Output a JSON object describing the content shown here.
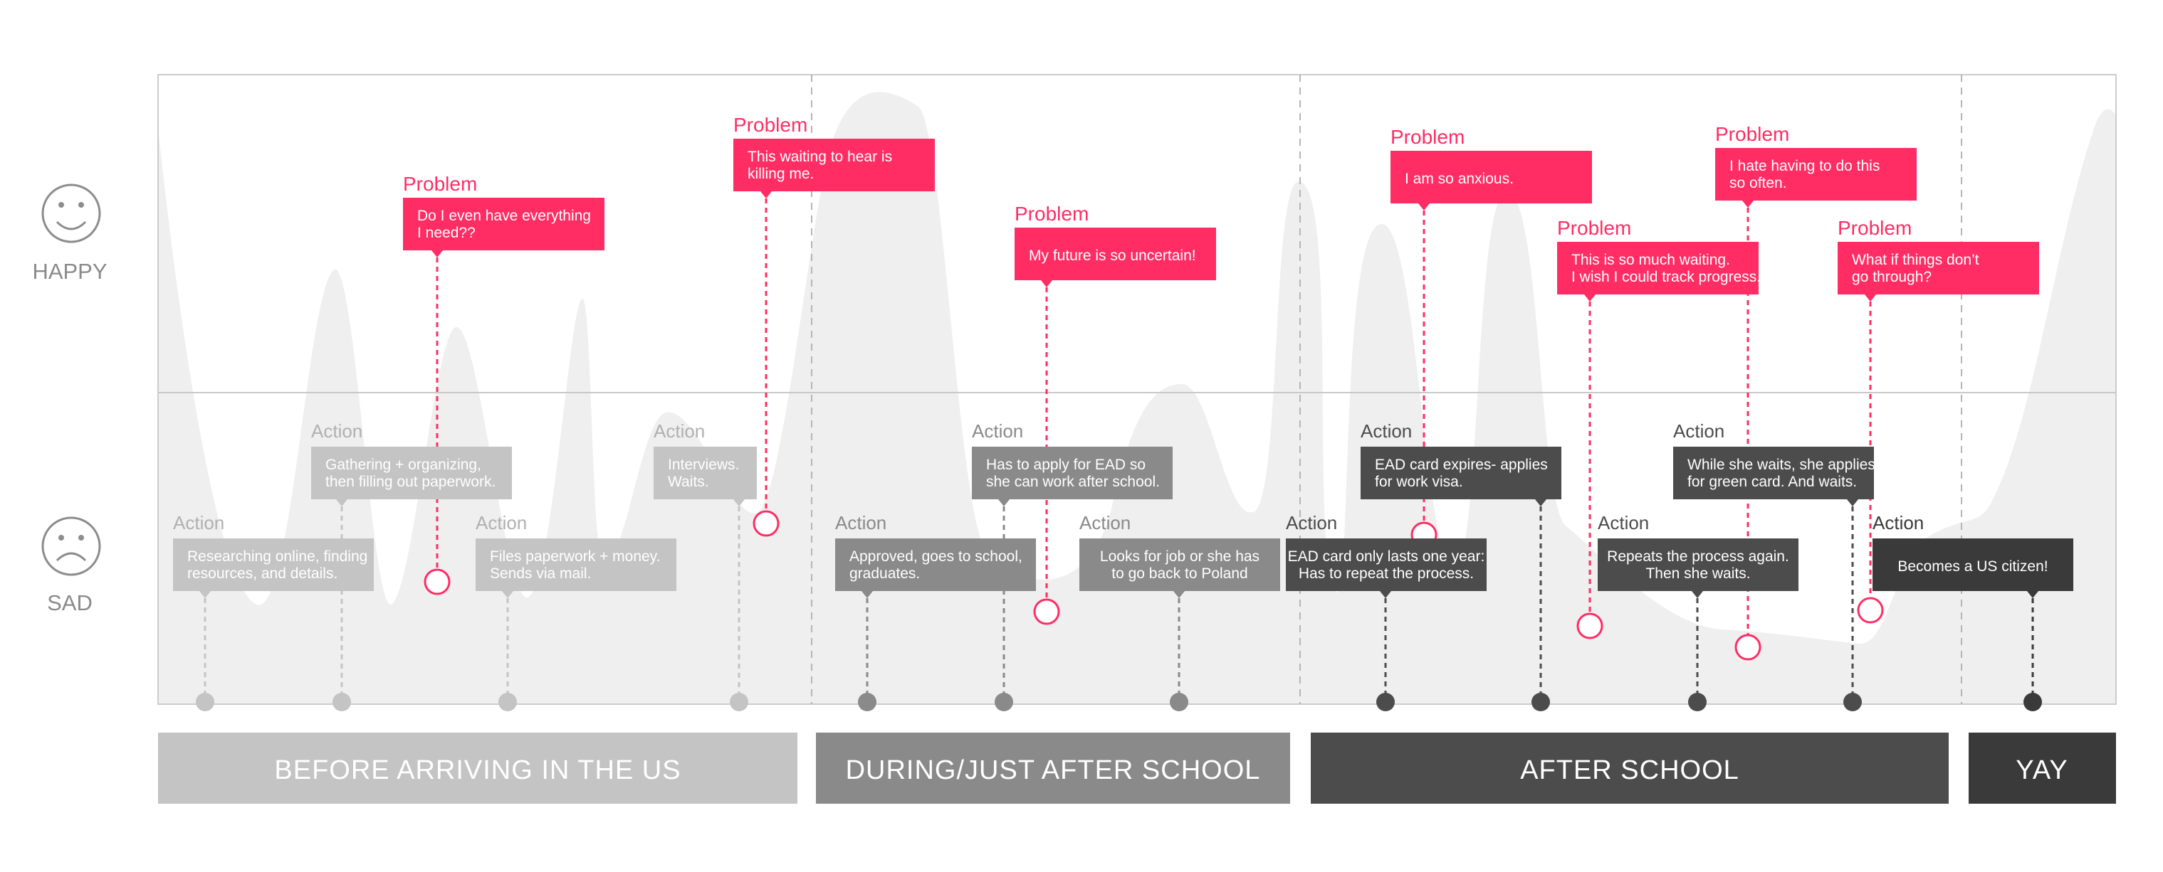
{
  "moods": {
    "happy": "HAPPY",
    "sad": "SAD"
  },
  "colors": {
    "problem": "#ff2d64",
    "phase_before": "#c4c4c4",
    "phase_during": "#8a8a8a",
    "phase_after": "#4c4c4c",
    "phase_yay": "#3a3a3a",
    "curve": "#efefef"
  },
  "phases": [
    {
      "label": "BEFORE ARRIVING IN THE US",
      "tone": "before"
    },
    {
      "label": "DURING/JUST AFTER SCHOOL",
      "tone": "during"
    },
    {
      "label": "AFTER SCHOOL",
      "tone": "after"
    },
    {
      "label": "YAY",
      "tone": "yay"
    }
  ],
  "actions": [
    {
      "heading": "Action",
      "lines": [
        "Researching online, finding",
        "resources, and details."
      ],
      "tone": "before"
    },
    {
      "heading": "Action",
      "lines": [
        "Gathering + organizing,",
        "then filling out paperwork."
      ],
      "tone": "before"
    },
    {
      "heading": "Action",
      "lines": [
        "Files paperwork + money.",
        "Sends via mail."
      ],
      "tone": "before"
    },
    {
      "heading": "Action",
      "lines": [
        "Interviews.",
        "Waits."
      ],
      "tone": "before"
    },
    {
      "heading": "Action",
      "lines": [
        "Approved, goes to school,",
        "graduates."
      ],
      "tone": "during"
    },
    {
      "heading": "Action",
      "lines": [
        "Has to apply for EAD so",
        "she can work after school."
      ],
      "tone": "during"
    },
    {
      "heading": "Action",
      "lines": [
        "Looks for job or she has",
        "to go back to Poland"
      ],
      "tone": "during"
    },
    {
      "heading": "Action",
      "lines": [
        "EAD card only lasts one year:",
        "Has to repeat the process."
      ],
      "tone": "after"
    },
    {
      "heading": "Action",
      "lines": [
        "EAD card expires- applies",
        "for work visa."
      ],
      "tone": "after"
    },
    {
      "heading": "Action",
      "lines": [
        "Repeats the process again.",
        "Then she waits."
      ],
      "tone": "after"
    },
    {
      "heading": "Action",
      "lines": [
        "While she waits, she applies",
        "for green card. And waits."
      ],
      "tone": "after"
    },
    {
      "heading": "Action",
      "lines": [
        "Becomes a US citizen!"
      ],
      "tone": "yay"
    }
  ],
  "problems": [
    {
      "heading": "Problem",
      "lines": [
        "Do I even have everything",
        "I need??"
      ]
    },
    {
      "heading": "Problem",
      "lines": [
        "This waiting to hear is",
        "killing me."
      ]
    },
    {
      "heading": "Problem",
      "lines": [
        "My future is so uncertain!"
      ]
    },
    {
      "heading": "Problem",
      "lines": [
        "I am so anxious."
      ]
    },
    {
      "heading": "Problem",
      "lines": [
        "This is so much waiting.",
        "I wish I could track progress."
      ]
    },
    {
      "heading": "Problem",
      "lines": [
        "I hate having to do this",
        "so often."
      ]
    },
    {
      "heading": "Problem",
      "lines": [
        "What if things don’t",
        "go through?"
      ]
    }
  ]
}
